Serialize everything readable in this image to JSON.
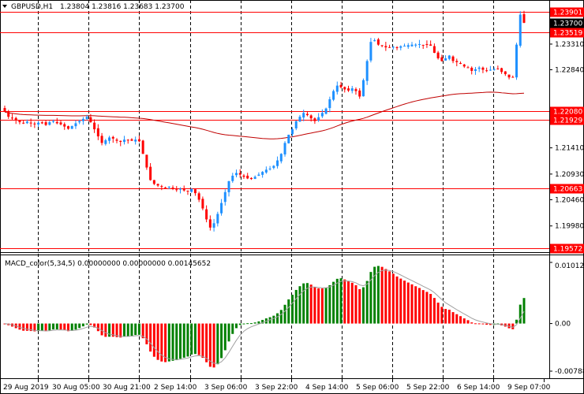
{
  "window": {
    "symbol_title": "GBPUSD,H1",
    "ohlc": "1.23804 1.23816 1.23683 1.23700",
    "collapse_icon": "triangle-down-icon"
  },
  "price_axis": {
    "min": 1.19572,
    "max": 1.24,
    "ticks": [
      "1.23310",
      "1.22840",
      "1.21410",
      "1.20930",
      "1.20460",
      "1.19980"
    ]
  },
  "levels": [
    {
      "value": "1.23901",
      "price": 1.23901
    },
    {
      "value": "1.23519",
      "price": 1.23519
    },
    {
      "value": "1.22080",
      "price": 1.2208
    },
    {
      "value": "1.21929",
      "price": 1.21929
    },
    {
      "value": "1.20663",
      "price": 1.20663
    },
    {
      "value": "1.19572",
      "price": 1.19572
    }
  ],
  "current_price": {
    "value": "1.23700",
    "price": 1.237
  },
  "indicator": {
    "title": "MACD_color(5,34,5) 0.00000000 0.00000000 0.00145652",
    "axis_min": -0.007889,
    "axis_max": 0.010128,
    "ticks": [
      "0.0101283",
      "0.00",
      "-0.007889"
    ]
  },
  "time_axis": {
    "labels": [
      "29 Aug 2019",
      "30 Aug 05:00",
      "30 Aug 21:00",
      "2 Sep 14:00",
      "3 Sep 06:00",
      "3 Sep 22:00",
      "4 Sep 14:00",
      "5 Sep 06:00",
      "5 Sep 22:00",
      "6 Sep 14:00",
      "9 Sep 07:00"
    ]
  },
  "colors": {
    "bull": "#1e90ff",
    "bear": "#ff0000",
    "macd_up": "#008000",
    "macd_down": "#ff0000",
    "level_line": "#ff0000",
    "ma_line": "#c00000",
    "grid": "#000000",
    "current_bg": "#000000"
  },
  "chart_data": {
    "type": "candlestick",
    "symbol": "GBPUSD",
    "timeframe": "H1",
    "closes": [
      1.2208,
      1.2198,
      1.2196,
      1.2191,
      1.2188,
      1.2186,
      1.2189,
      1.2187,
      1.2185,
      1.2187,
      1.2186,
      1.2183,
      1.2188,
      1.219,
      1.2186,
      1.2184,
      1.218,
      1.2176,
      1.2181,
      1.2186,
      1.219,
      1.2194,
      1.2198,
      1.2188,
      1.2175,
      1.2162,
      1.215,
      1.2155,
      1.216,
      1.2158,
      1.2154,
      1.2152,
      1.2156,
      1.2155,
      1.2154,
      1.2156,
      1.2153,
      1.213,
      1.2105,
      1.2082,
      1.2075,
      1.2072,
      1.207,
      1.2068,
      1.207,
      1.2067,
      1.2064,
      1.2066,
      1.2063,
      1.2062,
      1.2066,
      1.2058,
      1.2046,
      1.203,
      1.201,
      1.1995,
      1.2003,
      1.202,
      1.204,
      1.206,
      1.208,
      1.209,
      1.2095,
      1.2092,
      1.2088,
      1.2085,
      1.2084,
      1.2088,
      1.2092,
      1.2097,
      1.2101,
      1.2103,
      1.2108,
      1.2118,
      1.213,
      1.215,
      1.2165,
      1.2175,
      1.219,
      1.2198,
      1.2205,
      1.2201,
      1.2195,
      1.219,
      1.2197,
      1.2205,
      1.2213,
      1.223,
      1.2245,
      1.2255,
      1.2252,
      1.2248,
      1.2246,
      1.225,
      1.2245,
      1.2235,
      1.2265,
      1.23,
      1.2335,
      1.2338,
      1.233,
      1.2328,
      1.2325,
      1.2325,
      1.2326,
      1.2324,
      1.2327,
      1.2328,
      1.2329,
      1.233,
      1.233,
      1.2331,
      1.2329,
      1.233,
      1.2328,
      1.2315,
      1.2305,
      1.23,
      1.2305,
      1.231,
      1.23,
      1.2298,
      1.2295,
      1.229,
      1.2288,
      1.2282,
      1.2285,
      1.2288,
      1.2284,
      1.2283,
      1.2284,
      1.2285,
      1.2286,
      1.228,
      1.2276,
      1.227,
      1.227,
      1.233,
      1.2385,
      1.237
    ]
  }
}
